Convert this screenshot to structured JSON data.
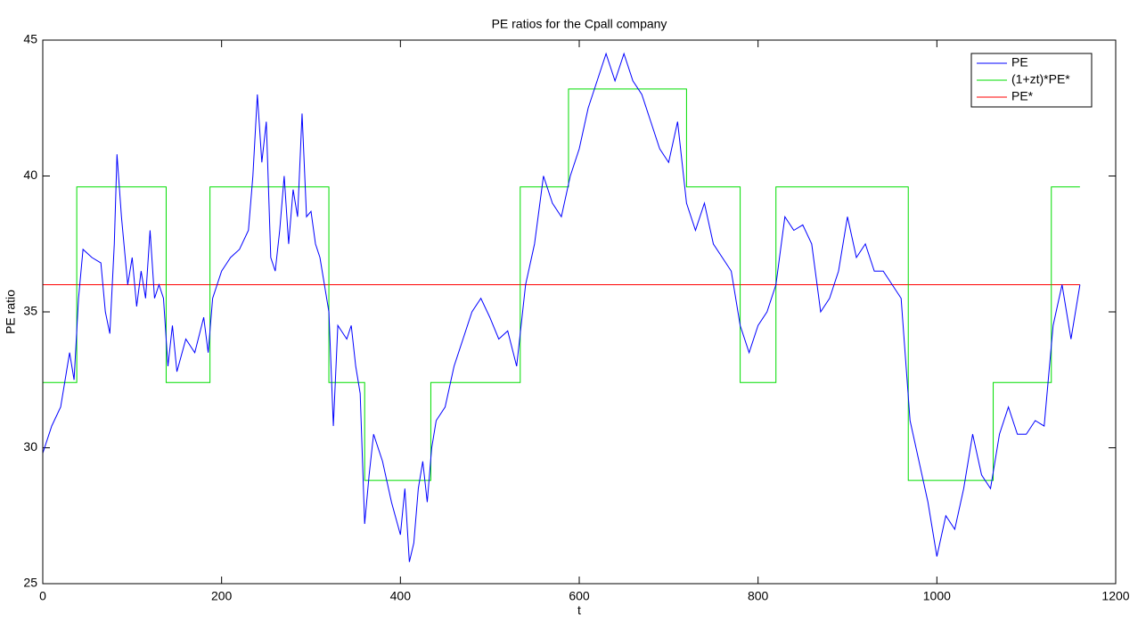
{
  "chart_data": {
    "type": "line",
    "title": "PE ratios for the Cpall company",
    "xlabel": "t",
    "ylabel": "PE ratio",
    "xlim": [
      0,
      1200
    ],
    "xticks": [
      0,
      200,
      400,
      600,
      800,
      1000,
      1200
    ],
    "ylim": [
      25,
      45
    ],
    "yticks": [
      25,
      30,
      35,
      40,
      45
    ],
    "legend": "northeast",
    "series": [
      {
        "name": "PE",
        "color": "#0000ff",
        "x": [
          0,
          10,
          20,
          30,
          35,
          40,
          45,
          55,
          65,
          70,
          75,
          80,
          83,
          88,
          95,
          100,
          105,
          110,
          115,
          120,
          125,
          130,
          135,
          140,
          145,
          150,
          160,
          170,
          180,
          185,
          190,
          200,
          210,
          220,
          230,
          235,
          240,
          245,
          250,
          255,
          260,
          265,
          270,
          275,
          280,
          285,
          290,
          295,
          300,
          305,
          310,
          315,
          320,
          325,
          330,
          340,
          345,
          350,
          355,
          360,
          365,
          370,
          380,
          390,
          400,
          405,
          410,
          415,
          420,
          425,
          430,
          435,
          440,
          450,
          460,
          470,
          480,
          490,
          500,
          510,
          520,
          530,
          540,
          550,
          560,
          570,
          580,
          590,
          600,
          610,
          620,
          630,
          640,
          650,
          660,
          670,
          680,
          690,
          700,
          710,
          720,
          730,
          740,
          750,
          760,
          770,
          780,
          790,
          800,
          810,
          820,
          830,
          840,
          850,
          860,
          870,
          880,
          890,
          900,
          910,
          920,
          930,
          940,
          950,
          960,
          970,
          980,
          990,
          1000,
          1010,
          1020,
          1030,
          1040,
          1050,
          1060,
          1070,
          1080,
          1090,
          1100,
          1110,
          1120,
          1130,
          1140,
          1150,
          1160
        ],
        "values": [
          29.8,
          30.8,
          31.5,
          33.5,
          32.5,
          35.5,
          37.3,
          37.0,
          36.8,
          35.0,
          34.2,
          37.5,
          40.8,
          38.5,
          36.0,
          37.0,
          35.2,
          36.5,
          35.5,
          38.0,
          35.5,
          36.0,
          35.5,
          33.0,
          34.5,
          32.8,
          34.0,
          33.5,
          34.8,
          33.5,
          35.5,
          36.5,
          37.0,
          37.3,
          38.0,
          40.0,
          43.0,
          40.5,
          42.0,
          37.0,
          36.5,
          38.0,
          40.0,
          37.5,
          39.5,
          38.5,
          42.3,
          38.5,
          38.7,
          37.5,
          37.0,
          36.0,
          35.0,
          30.8,
          34.5,
          34.0,
          34.5,
          33.0,
          32.0,
          27.2,
          29.0,
          30.5,
          29.5,
          28.0,
          26.8,
          28.5,
          25.8,
          26.5,
          28.5,
          29.5,
          28.0,
          30.0,
          31.0,
          31.5,
          33.0,
          34.0,
          35.0,
          35.5,
          34.8,
          34.0,
          34.3,
          33.0,
          36.0,
          37.5,
          40.0,
          39.0,
          38.5,
          40.0,
          41.0,
          42.5,
          43.5,
          44.5,
          43.5,
          44.5,
          43.5,
          43.0,
          42.0,
          41.0,
          40.5,
          42.0,
          39.0,
          38.0,
          39.0,
          37.5,
          37.0,
          36.5,
          34.5,
          33.5,
          34.5,
          35.0,
          36.0,
          38.5,
          38.0,
          38.2,
          37.5,
          35.0,
          35.5,
          36.5,
          38.5,
          37.0,
          37.5,
          36.5,
          36.5,
          36.0,
          35.5,
          31.0,
          29.5,
          28.0,
          26.0,
          27.5,
          27.0,
          28.5,
          30.5,
          29.0,
          28.5,
          30.5,
          31.5,
          30.5,
          30.5,
          31.0,
          30.8,
          34.5,
          36.0,
          34.0,
          36.0
        ]
      },
      {
        "name": "(1+zt)*PE*",
        "color": "#00dd00",
        "x": [
          0,
          38,
          38,
          138,
          138,
          187,
          187,
          320,
          320,
          360,
          360,
          434,
          434,
          534,
          534,
          588,
          588,
          720,
          720,
          780,
          780,
          820,
          820,
          968,
          968,
          1063,
          1063,
          1128,
          1128,
          1160
        ],
        "values": [
          32.4,
          32.4,
          39.6,
          39.6,
          32.4,
          32.4,
          39.6,
          39.6,
          32.4,
          32.4,
          28.8,
          28.8,
          32.4,
          32.4,
          39.6,
          39.6,
          43.2,
          43.2,
          39.6,
          39.6,
          32.4,
          32.4,
          39.6,
          39.6,
          28.8,
          28.8,
          32.4,
          32.4,
          39.6,
          39.6
        ]
      },
      {
        "name": "PE*",
        "color": "#ff0000",
        "x": [
          0,
          1160
        ],
        "values": [
          36,
          36
        ]
      }
    ]
  }
}
